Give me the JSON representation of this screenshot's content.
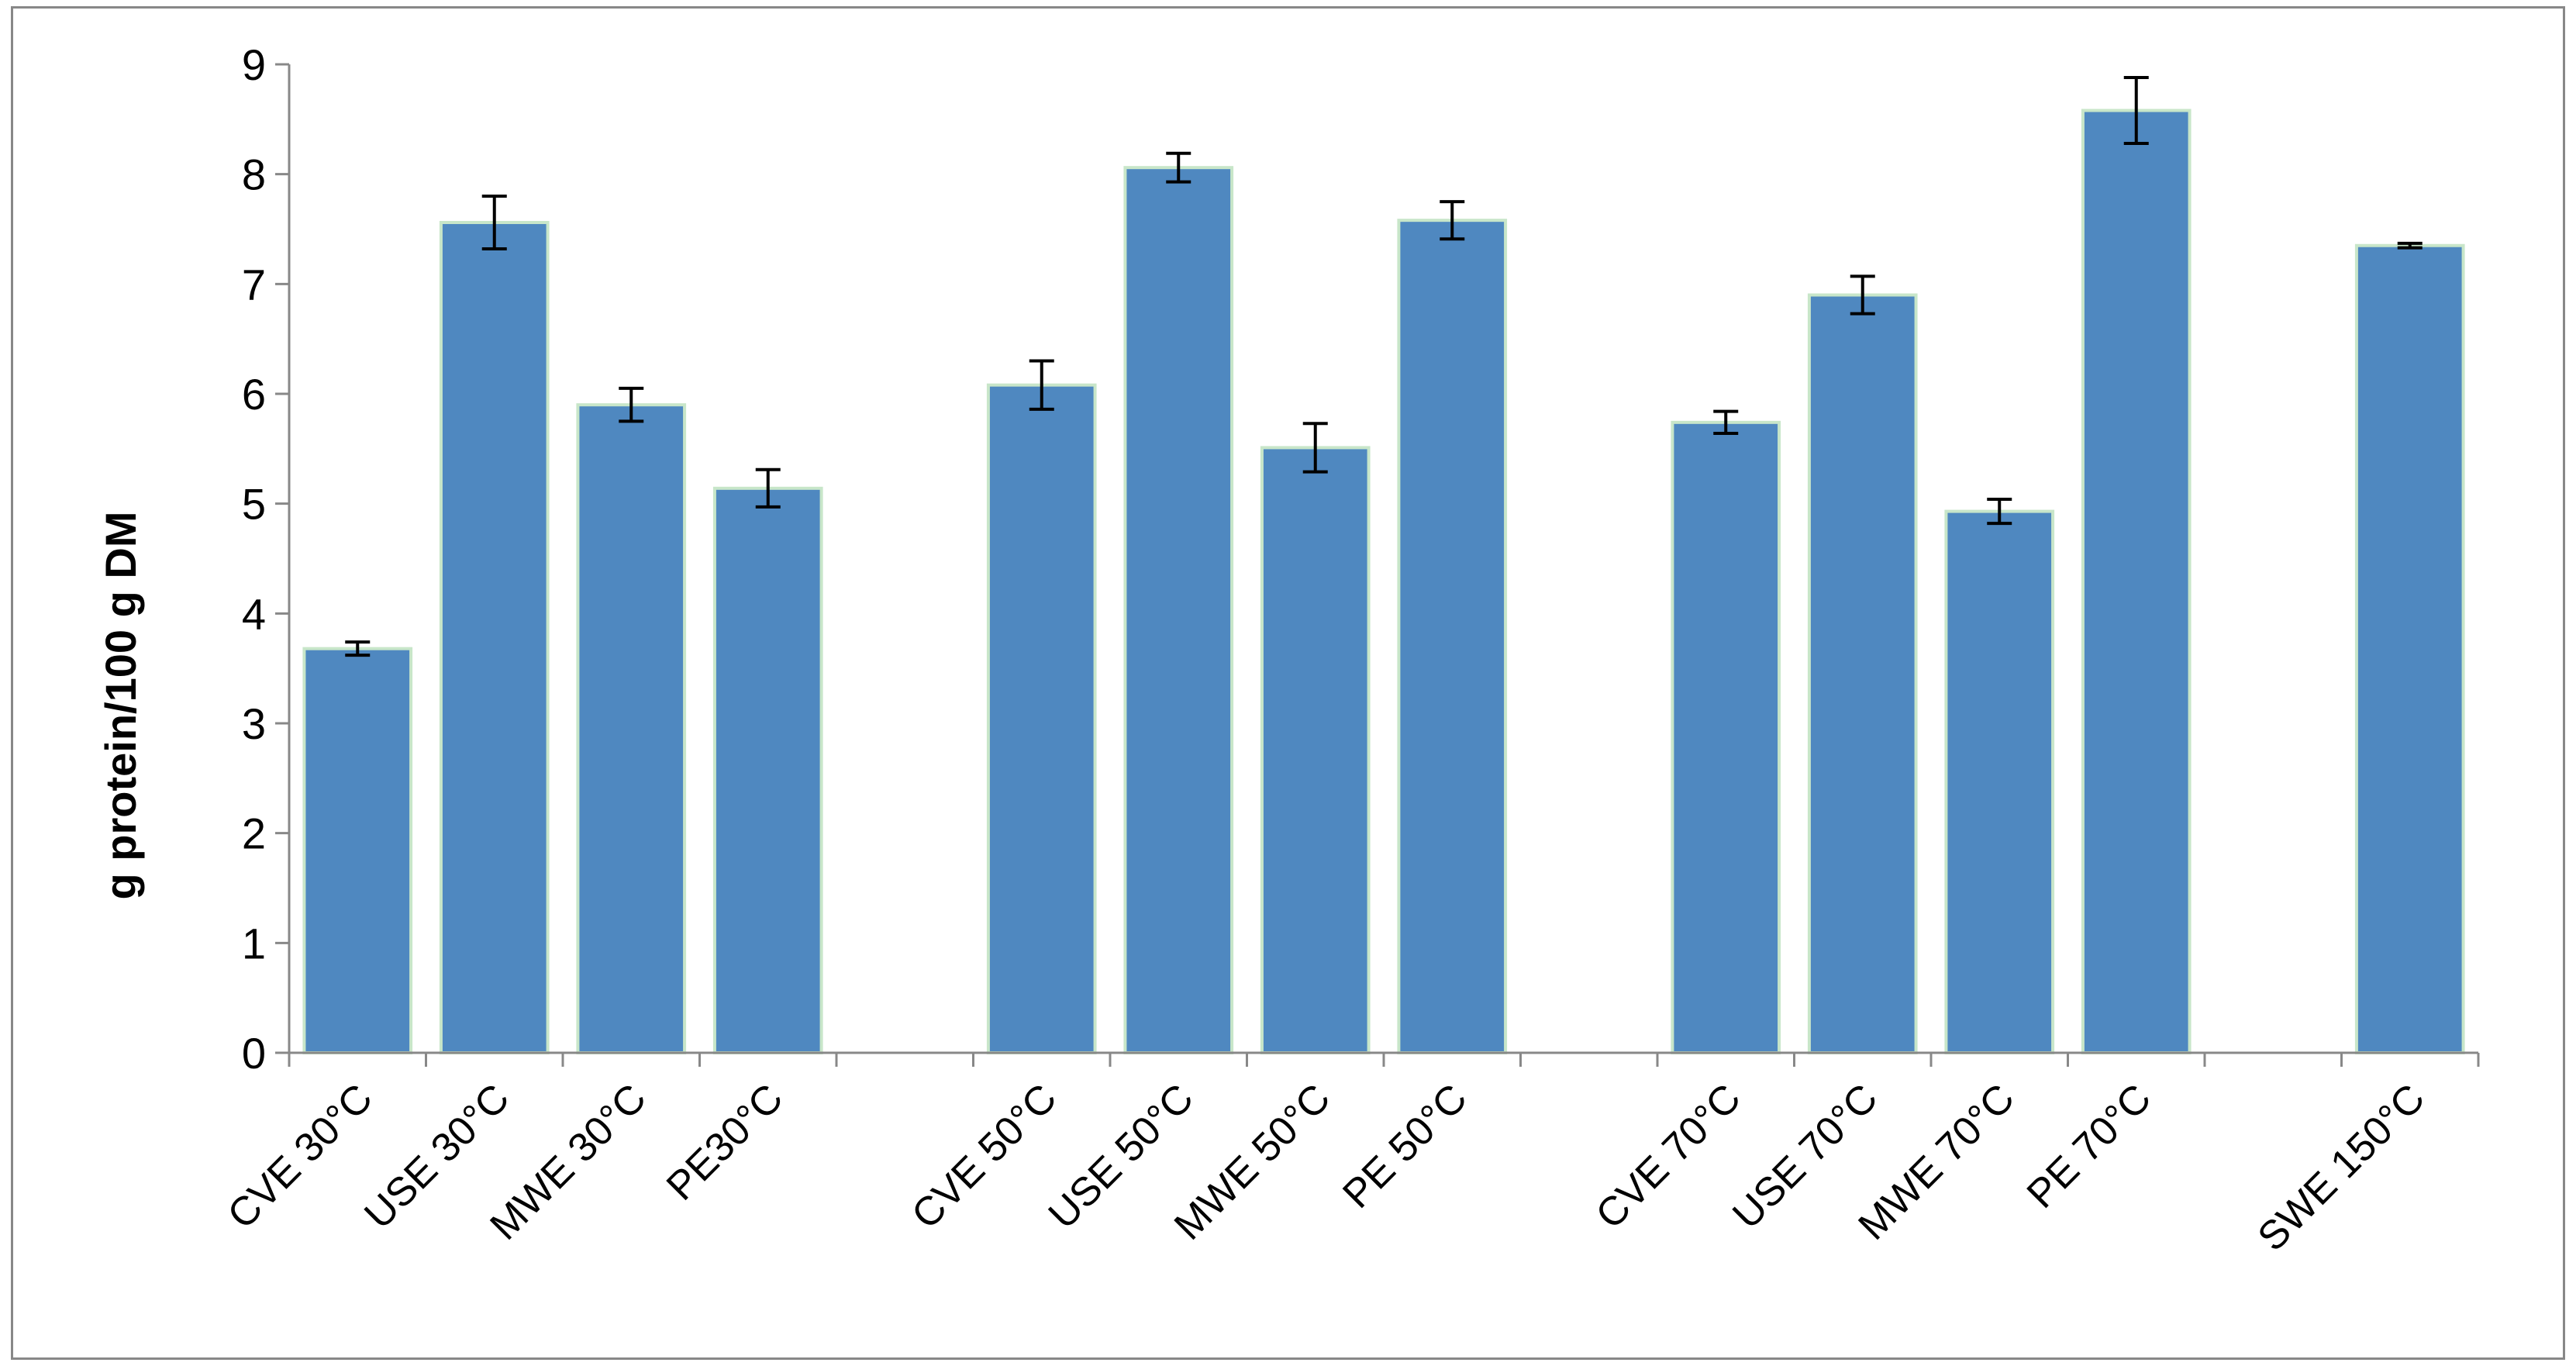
{
  "chart_data": {
    "type": "bar",
    "title": "",
    "xlabel": "",
    "ylabel": "g protein/100 g DM",
    "ylim": [
      0,
      9
    ],
    "yticks": [
      0,
      1,
      2,
      3,
      4,
      5,
      6,
      7,
      8,
      9
    ],
    "grid": false,
    "legend": "none",
    "bar_color": "#4f88c0",
    "bar_edge_color": "#c8e6c9",
    "categories": [
      "CVE 30°C",
      "USE 30°C",
      "MWE 30°C",
      "PE30°C",
      "",
      "CVE 50°C",
      "USE 50°C",
      "MWE 50°C",
      "PE 50°C",
      "",
      "CVE 70°C",
      "USE 70°C",
      "MWE 70°C",
      "PE 70°C",
      "",
      "SWE 150°C"
    ],
    "values": [
      3.68,
      7.56,
      5.9,
      5.14,
      null,
      6.08,
      8.06,
      5.51,
      7.58,
      null,
      5.74,
      6.9,
      4.93,
      8.58,
      null,
      7.35
    ],
    "errors": [
      0.06,
      0.24,
      0.15,
      0.17,
      null,
      0.22,
      0.13,
      0.22,
      0.17,
      null,
      0.1,
      0.17,
      0.11,
      0.3,
      null,
      0.02
    ]
  }
}
